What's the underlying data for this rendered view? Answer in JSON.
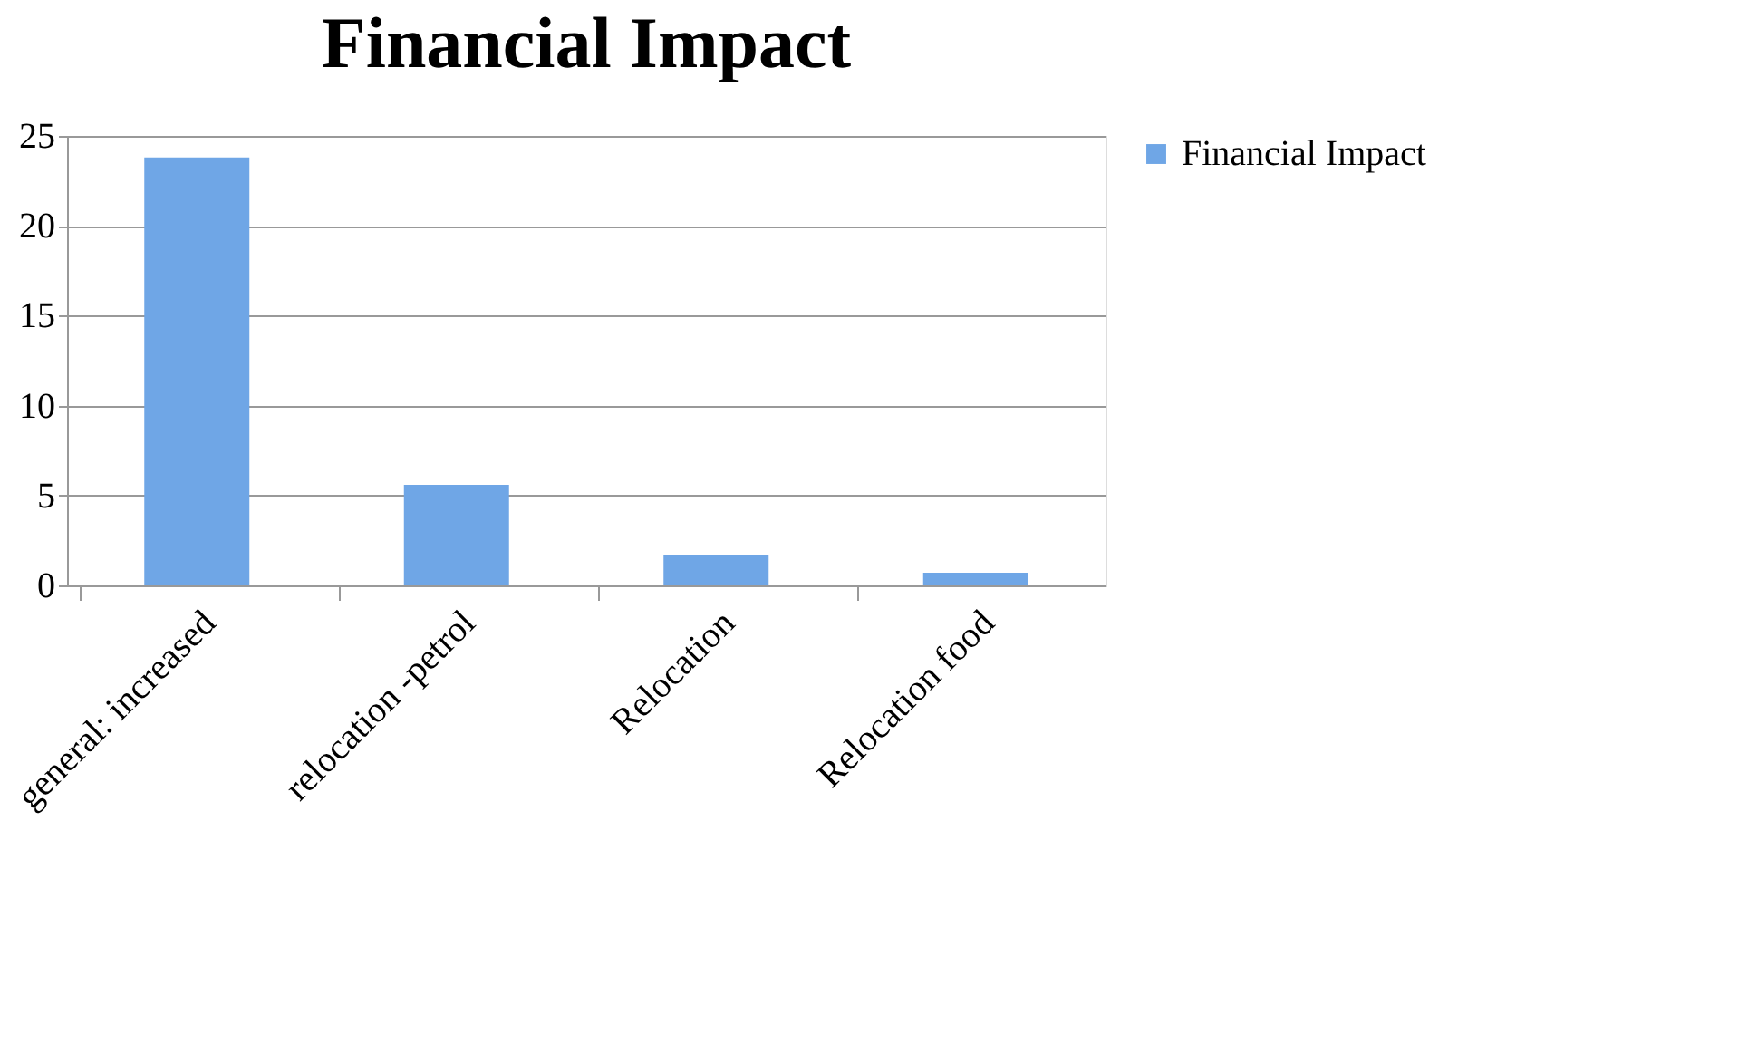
{
  "chart_data": {
    "type": "bar",
    "title": "Financial Impact",
    "categories": [
      "general: increased",
      "relocation -petrol",
      "Relocation",
      "Relocation  food"
    ],
    "series": [
      {
        "name": "Financial Impact",
        "color": "#6fa6e6",
        "values": [
          23.8,
          5.6,
          1.7,
          0.7
        ]
      }
    ],
    "ylim": [
      0,
      25
    ],
    "yticks": [
      0,
      5,
      10,
      15,
      20,
      25
    ],
    "grid": "y",
    "legend": "right"
  }
}
